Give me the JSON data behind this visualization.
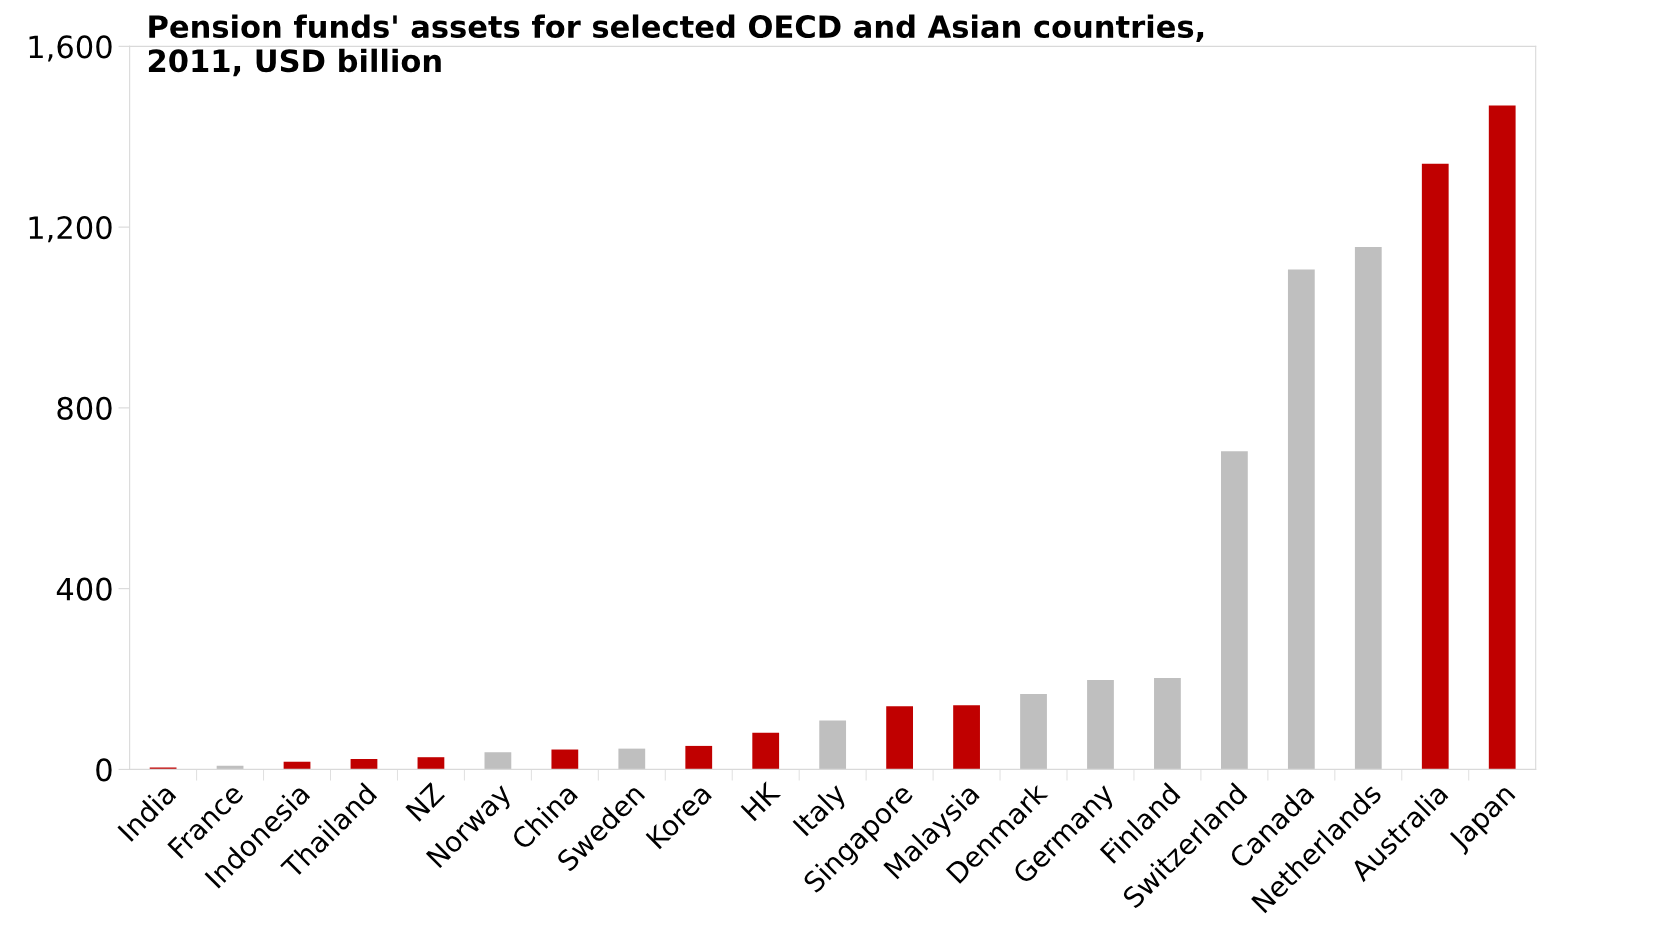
{
  "chart_data": {
    "type": "bar",
    "title": "Pension funds' assets for selected OECD and Asian countries,\n2011, USD billion",
    "categories": [
      "India",
      "France",
      "Indonesia",
      "Thailand",
      "NZ",
      "Norway",
      "China",
      "Sweden",
      "Korea",
      "HK",
      "Italy",
      "Singapore",
      "Malaysia",
      "Denmark",
      "Germany",
      "Finland",
      "Switzerland",
      "Canada",
      "Netherlands",
      "Australia",
      "Japan"
    ],
    "values": [
      4,
      8,
      17,
      23,
      27,
      38,
      44,
      46,
      52,
      81,
      108,
      140,
      142,
      167,
      198,
      202,
      704,
      1106,
      1156,
      1340,
      1469
    ],
    "colors": [
      "#c00000",
      "#bfbfbf",
      "#c00000",
      "#c00000",
      "#c00000",
      "#bfbfbf",
      "#c00000",
      "#bfbfbf",
      "#c00000",
      "#c00000",
      "#bfbfbf",
      "#c00000",
      "#c00000",
      "#bfbfbf",
      "#bfbfbf",
      "#bfbfbf",
      "#bfbfbf",
      "#bfbfbf",
      "#bfbfbf",
      "#c00000",
      "#c00000"
    ],
    "ylim": [
      0,
      1600
    ],
    "yticks": [
      0,
      {
        "value": 400,
        "label": "400"
      },
      {
        "value": 800,
        "label": "800"
      },
      {
        "value": 1200,
        "label": "1,200"
      },
      {
        "value": 1600,
        "label": "1,600"
      }
    ],
    "grid": false
  }
}
